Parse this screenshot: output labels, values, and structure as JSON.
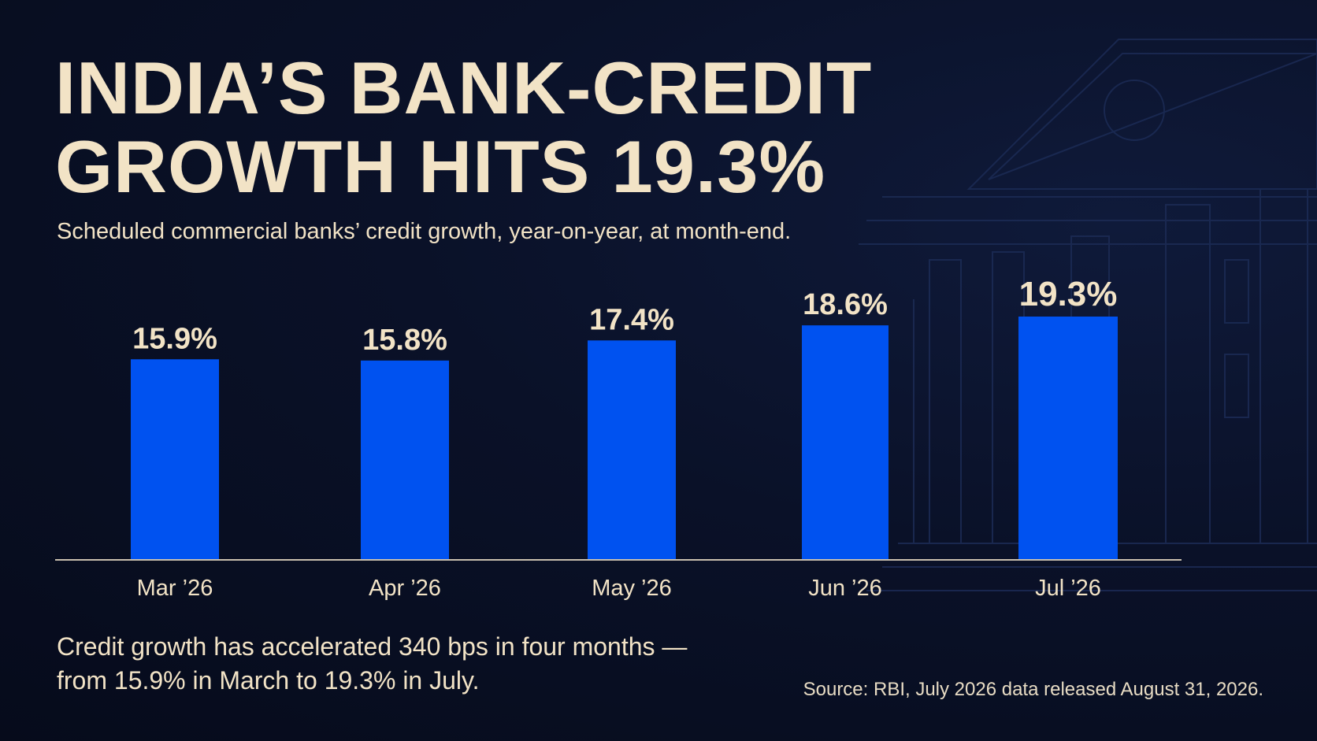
{
  "title_lines": [
    "INDIA’S BANK-CREDIT",
    "GROWTH HITS 19.3%"
  ],
  "subtitle": "Scheduled commercial banks’ credit growth, year-on-year, at month-end.",
  "summary_lines": [
    "Credit growth has accelerated 340 bps in four months —",
    "from 15.9% in March to 19.3% in July."
  ],
  "source": "Source: RBI, July 2026 data released August 31, 2026.",
  "colors": {
    "background": "#070d1f",
    "text": "#f2e3c6",
    "bar": "#0052f0",
    "axis": "#c9bfae",
    "building": "#1c2b55"
  },
  "chart_data": {
    "type": "bar",
    "title": "INDIA’S BANK-CREDIT GROWTH HITS 19.3%",
    "categories": [
      "Mar ’26",
      "Apr ’26",
      "May ’26",
      "Jun ’26",
      "Jul ’26"
    ],
    "values": [
      15.9,
      15.8,
      17.4,
      18.6,
      19.3
    ],
    "value_labels": [
      "15.9%",
      "15.8%",
      "17.4%",
      "18.6%",
      "19.3%"
    ],
    "xlabel": "",
    "ylabel": "",
    "ylim": [
      0,
      19.3
    ],
    "grid": false,
    "legend": "none"
  }
}
